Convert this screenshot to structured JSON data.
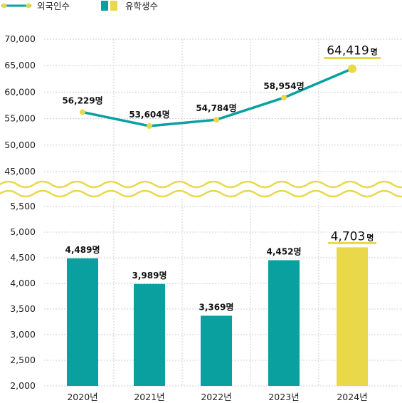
{
  "colors": {
    "teal": "#0aa0a0",
    "yellow": "#e8d84a",
    "grid": "#cfcfcf",
    "text": "#222222"
  },
  "legend": [
    {
      "label": "외국인수",
      "kind": "line"
    },
    {
      "label": "유학생수",
      "kind": "bar"
    }
  ],
  "chart_data": {
    "type": "bar+line",
    "categories": [
      "2020년",
      "2021년",
      "2022년",
      "2023년",
      "2024년"
    ],
    "line": {
      "name": "외국인수",
      "values": [
        56229,
        53604,
        54784,
        58954,
        64419
      ],
      "labels": [
        "56,229명",
        "53,604명",
        "54,784명",
        "58,954명",
        "64,419명"
      ],
      "highlight": {
        "num": "64,419",
        "unit": "명"
      },
      "ylim": [
        45000,
        70000
      ],
      "ticks": [
        "45,000",
        "50,000",
        "55,000",
        "60,000",
        "65,000",
        "70,000"
      ]
    },
    "bars": {
      "name": "유학생수",
      "values": [
        4489,
        3989,
        3369,
        4452,
        4703
      ],
      "labels": [
        "4,489명",
        "3,989명",
        "3,369명",
        "4,452명",
        "4,703명"
      ],
      "highlight": {
        "num": "4,703",
        "unit": "명"
      },
      "ylim": [
        2000,
        5500
      ],
      "ticks": [
        "2,000",
        "2,500",
        "3,000",
        "3,500",
        "4,000",
        "4,500",
        "5,000",
        "5,500"
      ]
    },
    "axis_break": true,
    "grid": "horizontal dashed"
  }
}
